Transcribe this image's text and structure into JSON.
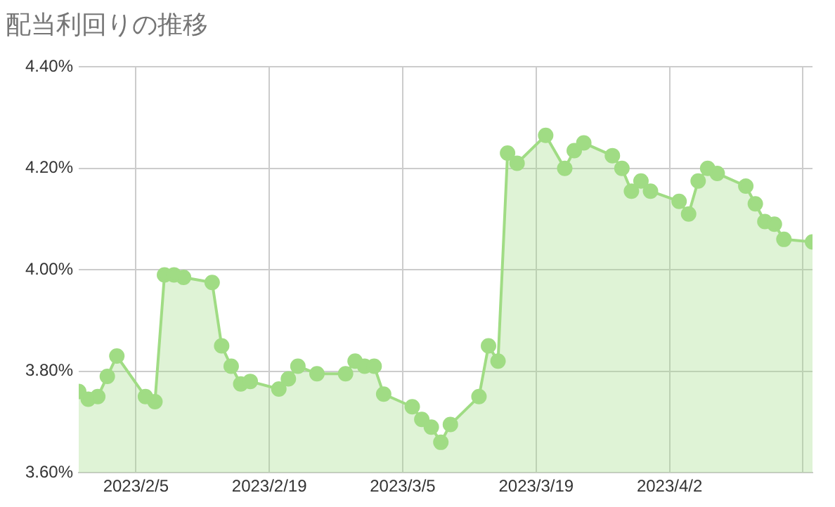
{
  "chart_data": {
    "type": "area",
    "title": "配当利回りの推移",
    "x": [
      "2023-01-30",
      "2023-01-31",
      "2023-02-01",
      "2023-02-02",
      "2023-02-03",
      "2023-02-06",
      "2023-02-07",
      "2023-02-08",
      "2023-02-09",
      "2023-02-10",
      "2023-02-13",
      "2023-02-14",
      "2023-02-15",
      "2023-02-16",
      "2023-02-17",
      "2023-02-20",
      "2023-02-21",
      "2023-02-22",
      "2023-02-24",
      "2023-02-27",
      "2023-02-28",
      "2023-03-01",
      "2023-03-02",
      "2023-03-03",
      "2023-03-06",
      "2023-03-07",
      "2023-03-08",
      "2023-03-09",
      "2023-03-10",
      "2023-03-13",
      "2023-03-14",
      "2023-03-15",
      "2023-03-16",
      "2023-03-17",
      "2023-03-20",
      "2023-03-22",
      "2023-03-23",
      "2023-03-24",
      "2023-03-27",
      "2023-03-28",
      "2023-03-29",
      "2023-03-30",
      "2023-03-31",
      "2023-04-03",
      "2023-04-04",
      "2023-04-05",
      "2023-04-06",
      "2023-04-07",
      "2023-04-10",
      "2023-04-11",
      "2023-04-12",
      "2023-04-13",
      "2023-04-14",
      "2023-04-17"
    ],
    "series": [
      {
        "color": "#a0dc84",
        "values": [
          3.76,
          3.745,
          3.75,
          3.79,
          3.83,
          3.75,
          3.74,
          3.99,
          3.99,
          3.985,
          3.975,
          3.85,
          3.81,
          3.775,
          3.78,
          3.765,
          3.785,
          3.81,
          3.795,
          3.795,
          3.82,
          3.81,
          3.81,
          3.755,
          3.73,
          3.705,
          3.69,
          3.66,
          3.695,
          3.75,
          3.85,
          3.82,
          4.23,
          4.21,
          4.265,
          4.2,
          4.235,
          4.25,
          4.225,
          4.2,
          4.155,
          4.175,
          4.155,
          4.135,
          4.11,
          4.175,
          4.2,
          4.19,
          4.165,
          4.13,
          4.095,
          4.09,
          4.06,
          4.055
        ]
      }
    ],
    "xlim": [
      "2023-01-30",
      "2023-04-17"
    ],
    "xticks": [
      {
        "value": "2023-02-05",
        "label": "2023/2/5"
      },
      {
        "value": "2023-02-19",
        "label": "2023/2/19"
      },
      {
        "value": "2023-03-05",
        "label": "2023/3/5"
      },
      {
        "value": "2023-03-19",
        "label": "2023/3/19"
      },
      {
        "value": "2023-04-02",
        "label": "2023/4/2"
      },
      {
        "value": "2023-04-16",
        "label": null
      }
    ],
    "ylim": [
      3.6,
      4.4
    ],
    "yticks": [
      {
        "value": 3.6,
        "label": "3.60%"
      },
      {
        "value": 3.8,
        "label": "3.80%"
      },
      {
        "value": 4.0,
        "label": "4.00%"
      },
      {
        "value": 4.2,
        "label": "4.20%"
      },
      {
        "value": 4.4,
        "label": "4.40%"
      }
    ],
    "grid": true,
    "legend": false,
    "marker": "circle",
    "line_style": "solid"
  }
}
